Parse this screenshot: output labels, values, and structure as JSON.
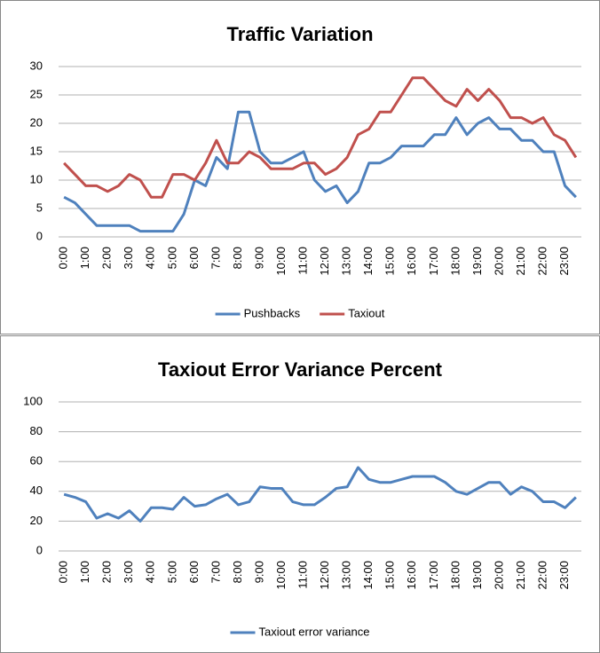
{
  "chart_data": [
    {
      "type": "line",
      "title": "Traffic Variation",
      "categories": [
        "0:00",
        null,
        "1:00",
        null,
        "2:00",
        null,
        "3:00",
        null,
        "4:00",
        null,
        "5:00",
        null,
        "6:00",
        null,
        "7:00",
        null,
        "8:00",
        null,
        "9:00",
        null,
        "10:00",
        null,
        "11:00",
        null,
        "12:00",
        null,
        "13:00",
        null,
        "14:00",
        null,
        "15:00",
        null,
        "16:00",
        null,
        "17:00",
        null,
        "18:00",
        null,
        "19:00",
        null,
        "20:00",
        null,
        "21:00",
        null,
        "22:00",
        null,
        "23:00",
        null
      ],
      "series": [
        {
          "name": "Pushbacks",
          "color": "#4f81bd",
          "values": [
            7,
            6,
            4,
            2,
            2,
            2,
            2,
            1,
            1,
            1,
            1,
            4,
            10,
            9,
            14,
            12,
            22,
            22,
            15,
            13,
            13,
            14,
            15,
            10,
            8,
            9,
            6,
            8,
            13,
            13,
            14,
            16,
            16,
            16,
            18,
            18,
            21,
            18,
            20,
            21,
            19,
            19,
            17,
            17,
            15,
            15,
            9,
            7
          ]
        },
        {
          "name": "Taxiout",
          "color": "#c0504d",
          "values": [
            13,
            11,
            9,
            9,
            8,
            9,
            11,
            10,
            7,
            7,
            11,
            11,
            10,
            13,
            17,
            13,
            13,
            15,
            14,
            12,
            12,
            12,
            13,
            13,
            11,
            12,
            14,
            18,
            19,
            22,
            22,
            25,
            28,
            28,
            26,
            24,
            23,
            26,
            24,
            26,
            24,
            21,
            21,
            20,
            21,
            18,
            17,
            14
          ]
        }
      ],
      "ylim": [
        0,
        30
      ],
      "yticks": [
        0,
        5,
        10,
        15,
        20,
        25,
        30
      ],
      "grid": true,
      "legend": "bottom"
    },
    {
      "type": "line",
      "title": "Taxiout Error Variance Percent",
      "categories": [
        "0:00",
        null,
        "1:00",
        null,
        "2:00",
        null,
        "3:00",
        null,
        "4:00",
        null,
        "5:00",
        null,
        "6:00",
        null,
        "7:00",
        null,
        "8:00",
        null,
        "9:00",
        null,
        "10:00",
        null,
        "11:00",
        null,
        "12:00",
        null,
        "13:00",
        null,
        "14:00",
        null,
        "15:00",
        null,
        "16:00",
        null,
        "17:00",
        null,
        "18:00",
        null,
        "19:00",
        null,
        "20:00",
        null,
        "21:00",
        null,
        "22:00",
        null,
        "23:00",
        null
      ],
      "series": [
        {
          "name": "Taxiout error variance",
          "color": "#4f81bd",
          "values": [
            38,
            36,
            33,
            22,
            25,
            22,
            27,
            20,
            29,
            29,
            28,
            36,
            30,
            31,
            35,
            38,
            31,
            33,
            43,
            42,
            42,
            33,
            31,
            31,
            36,
            42,
            43,
            56,
            48,
            46,
            46,
            48,
            50,
            50,
            50,
            46,
            40,
            38,
            42,
            46,
            46,
            38,
            43,
            40,
            33,
            33,
            29,
            36
          ]
        }
      ],
      "ylim": [
        0,
        100
      ],
      "yticks": [
        0,
        20,
        40,
        60,
        80,
        100
      ],
      "grid": true,
      "legend": "bottom"
    }
  ]
}
